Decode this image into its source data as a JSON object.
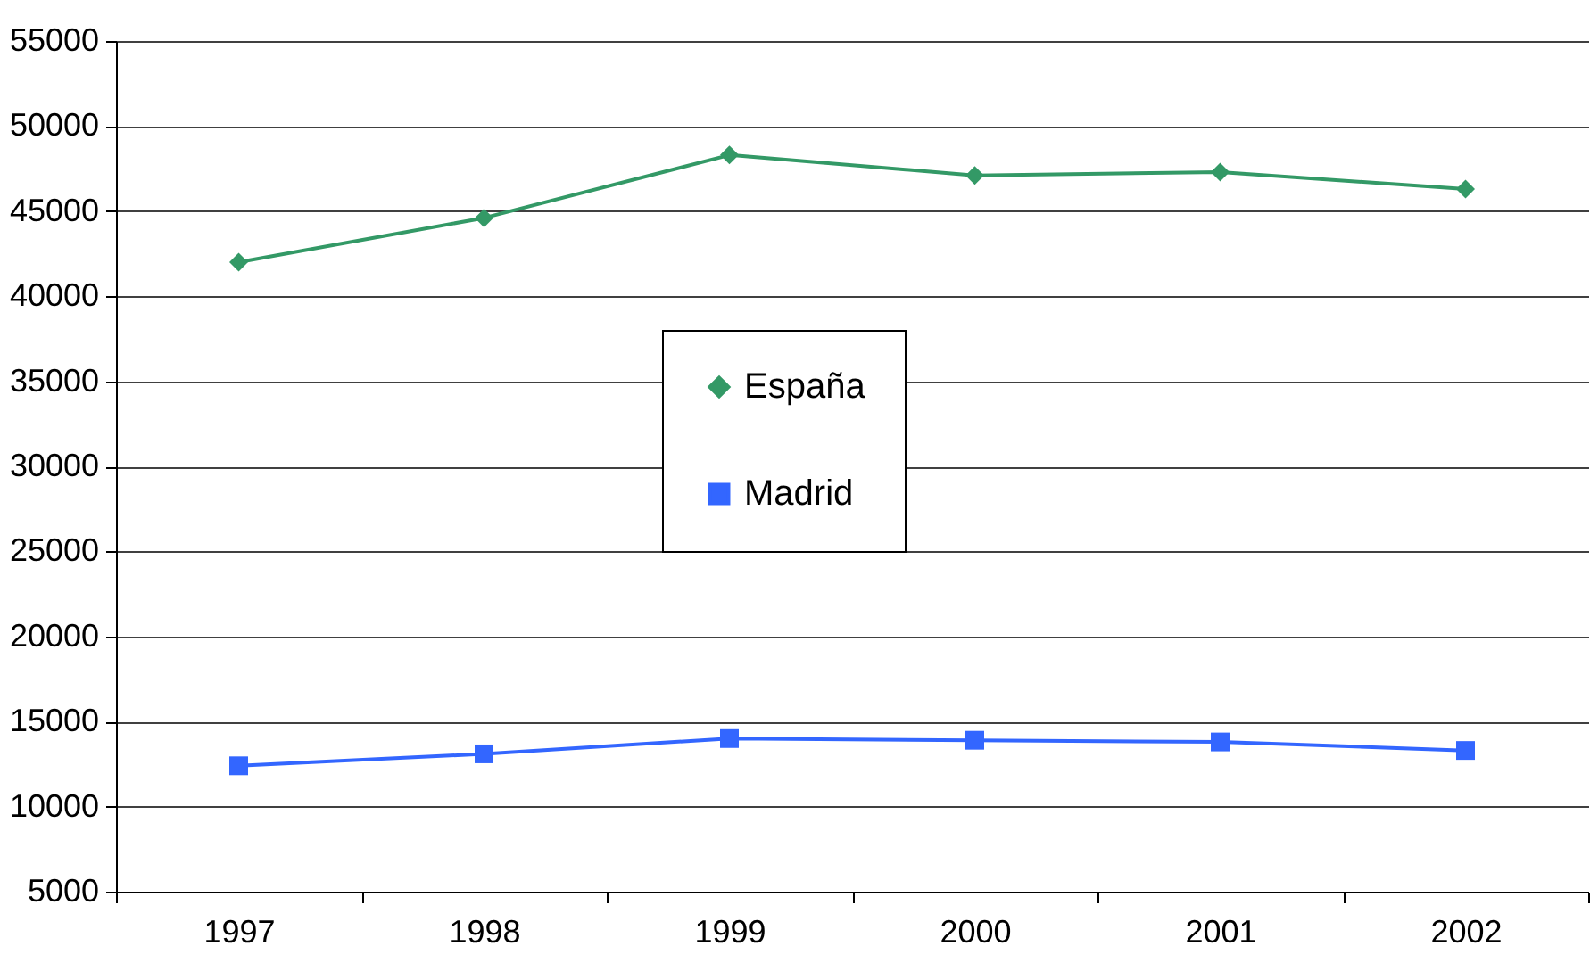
{
  "chart_data": {
    "type": "line",
    "categories": [
      "1997",
      "1998",
      "1999",
      "2000",
      "2001",
      "2002"
    ],
    "series": [
      {
        "name": "España",
        "color": "#339966",
        "marker": "diamond",
        "values": [
          42000,
          44600,
          48300,
          47100,
          47300,
          46300
        ]
      },
      {
        "name": "Madrid",
        "color": "#3366ff",
        "marker": "square",
        "values": [
          12400,
          13100,
          14000,
          13900,
          13800,
          13300
        ]
      }
    ],
    "ylim": [
      5000,
      55000
    ],
    "yticks": [
      5000,
      10000,
      15000,
      20000,
      25000,
      30000,
      35000,
      40000,
      45000,
      50000,
      55000
    ],
    "grid": "y",
    "legend": "center",
    "line_style": "solid"
  }
}
